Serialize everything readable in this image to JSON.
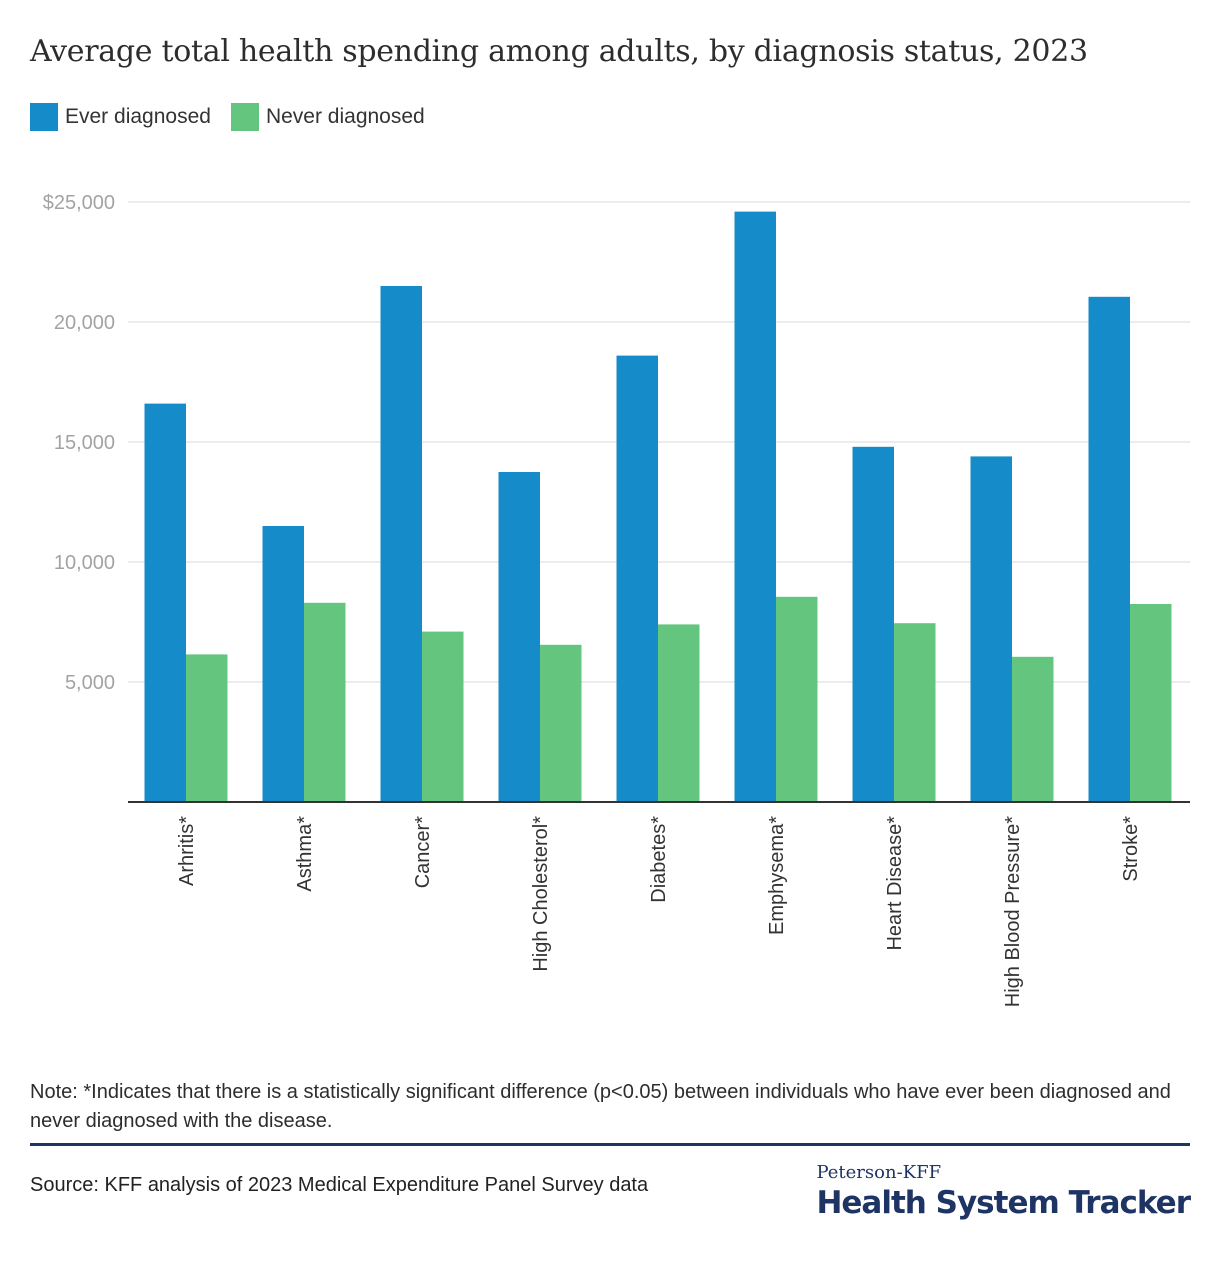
{
  "chart_data": {
    "type": "bar",
    "title": "Average total health spending among adults, by diagnosis status, 2023",
    "xlabel": "",
    "ylabel": "",
    "ylim": [
      0,
      25000
    ],
    "yticks": [
      5000,
      10000,
      15000,
      20000,
      25000
    ],
    "ytick_labels": [
      "5,000",
      "10,000",
      "15,000",
      "20,000",
      "$25,000"
    ],
    "grid": true,
    "legend_position": "top-left",
    "categories": [
      "Arhritis*",
      "Asthma*",
      "Cancer*",
      "High Cholesterol*",
      "Diabetes*",
      "Emphysema*",
      "Heart Disease*",
      "High Blood Pressure*",
      "Stroke*"
    ],
    "series": [
      {
        "name": "Ever diagnosed",
        "color": "#168bca",
        "values": [
          16600,
          11500,
          21500,
          13750,
          18600,
          24600,
          14800,
          14400,
          21050
        ]
      },
      {
        "name": "Never diagnosed",
        "color": "#64c57e",
        "values": [
          6150,
          8300,
          7100,
          6550,
          7400,
          8550,
          7450,
          6050,
          8250
        ]
      }
    ]
  },
  "legend": {
    "items": [
      {
        "label": "Ever diagnosed",
        "color": "#168bca"
      },
      {
        "label": "Never diagnosed",
        "color": "#64c57e"
      }
    ]
  },
  "footer": {
    "note": "Note: *Indicates that there is a statistically significant difference (p<0.05) between individuals who have ever been diagnosed and never diagnosed with the disease.",
    "source": "Source: KFF analysis of 2023 Medical Expenditure Panel Survey data",
    "brand_top": "Peterson-KFF",
    "brand_main": "Health System Tracker"
  },
  "colors": {
    "grid": "#e6e6e6",
    "axis": "#333333",
    "tick_label": "#a3a3a3",
    "brand": "#1d3464"
  }
}
